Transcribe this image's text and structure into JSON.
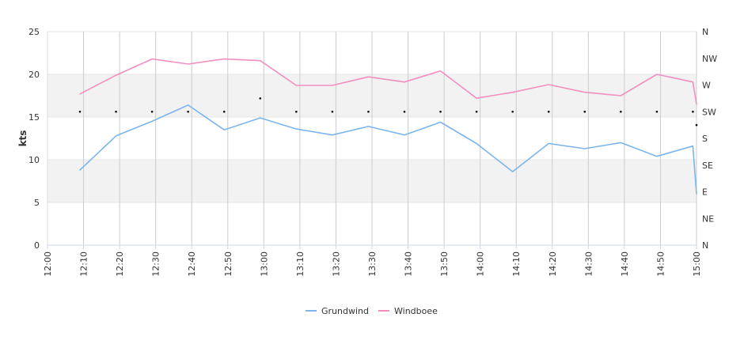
{
  "chart_data": {
    "type": "line",
    "ylabel": "kts",
    "ylim": [
      0,
      25
    ],
    "yticks": [
      0,
      5,
      10,
      15,
      20,
      25
    ],
    "y2ticks": [
      "N",
      "NE",
      "E",
      "SE",
      "S",
      "SW",
      "W",
      "NW",
      "N"
    ],
    "x_ticks": [
      "12:00",
      "12:10",
      "12:20",
      "12:30",
      "12:40",
      "12:50",
      "13:00",
      "13:10",
      "13:20",
      "13:30",
      "13:40",
      "13:50",
      "14:00",
      "14:10",
      "14:20",
      "14:30",
      "14:40",
      "14:50",
      "15:00"
    ],
    "x_range": [
      "12:00",
      "15:00"
    ],
    "bands": [
      [
        5,
        10
      ],
      [
        15,
        20
      ]
    ],
    "legend_position": "bottom-center",
    "colors": {
      "grundwind": "#7cb5ec",
      "windboee": "#f28fbf",
      "band": "#f2f2f2",
      "grid": "#cccccc",
      "direction": "#000000"
    },
    "series": [
      {
        "name": "Grundwind",
        "x": [
          "12:09",
          "12:19",
          "12:29",
          "12:39",
          "12:49",
          "12:59",
          "13:09",
          "13:19",
          "13:29",
          "13:39",
          "13:49",
          "13:59",
          "14:09",
          "14:19",
          "14:29",
          "14:39",
          "14:49",
          "14:59",
          "15:00"
        ],
        "values": [
          8.8,
          12.8,
          14.5,
          16.4,
          13.5,
          14.9,
          13.6,
          12.9,
          13.9,
          12.9,
          14.4,
          11.9,
          8.6,
          11.9,
          11.3,
          12.0,
          10.4,
          11.6,
          6.0
        ]
      },
      {
        "name": "Windboee",
        "x": [
          "12:09",
          "12:19",
          "12:29",
          "12:39",
          "12:49",
          "12:59",
          "13:09",
          "13:19",
          "13:29",
          "13:39",
          "13:49",
          "13:59",
          "14:09",
          "14:19",
          "14:29",
          "14:39",
          "14:49",
          "14:59",
          "15:00"
        ],
        "values": [
          17.7,
          19.9,
          21.8,
          21.2,
          21.8,
          21.6,
          18.7,
          18.7,
          19.7,
          19.1,
          20.4,
          17.2,
          17.9,
          18.8,
          17.9,
          17.5,
          20.0,
          19.1,
          16.5
        ]
      }
    ],
    "direction": {
      "x": [
        "12:09",
        "12:19",
        "12:29",
        "12:39",
        "12:49",
        "12:59",
        "13:09",
        "13:19",
        "13:29",
        "13:39",
        "13:49",
        "13:59",
        "14:09",
        "14:19",
        "14:29",
        "14:39",
        "14:49",
        "14:59",
        "15:00"
      ],
      "values": [
        5.0,
        5.0,
        5.0,
        5.0,
        5.0,
        5.5,
        5.0,
        5.0,
        5.0,
        5.0,
        5.0,
        5.0,
        5.0,
        5.0,
        5.0,
        5.0,
        5.0,
        5.0,
        4.5
      ]
    }
  }
}
